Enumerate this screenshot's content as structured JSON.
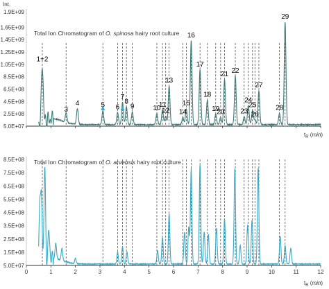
{
  "chart_data": [
    {
      "type": "line",
      "title_parts": [
        "Total Ion Chromatogram of ",
        "O. spinosa",
        " hairy root culture"
      ],
      "ylabel": "Int.",
      "xlabel_parts": [
        "t",
        "R",
        " (",
        "min",
        ")"
      ],
      "xlim": [
        0,
        12
      ],
      "xticks": [
        "0",
        "1",
        "2",
        "3",
        "4",
        "5",
        "6",
        "7",
        "8",
        "9",
        "10",
        "11",
        "12"
      ],
      "ylim": [
        50000000,
        1900000000
      ],
      "yticks": [
        "5.0E+07",
        "2.5E+08",
        "4.5E+08",
        "6.5E+08",
        "8.5E+08",
        "1.05E+09",
        "1.25E+09",
        "1.45E+09",
        "1.65E+09",
        "1.9E+09"
      ],
      "ytick_values": [
        50000000,
        250000000,
        450000000,
        650000000,
        850000000,
        1050000000,
        1250000000,
        1450000000,
        1650000000,
        1900000000
      ],
      "line_color": "#3f7a78",
      "peaks": [
        {
          "label": "1+2",
          "x": 0.65,
          "y": 1040000000
        },
        {
          "label": "3",
          "x": 1.62,
          "y": 230000000
        },
        {
          "label": "4",
          "x": 2.08,
          "y": 330000000
        },
        {
          "label": "5",
          "x": 3.12,
          "y": 300000000
        },
        {
          "label": "6",
          "x": 3.72,
          "y": 270000000
        },
        {
          "label": "7",
          "x": 3.92,
          "y": 430000000
        },
        {
          "label": "8",
          "x": 4.08,
          "y": 360000000
        },
        {
          "label": "9",
          "x": 4.32,
          "y": 280000000
        },
        {
          "label": "10",
          "x": 5.32,
          "y": 250000000
        },
        {
          "label": "11",
          "x": 5.55,
          "y": 310000000
        },
        {
          "label": "12",
          "x": 5.68,
          "y": 210000000
        },
        {
          "label": "13",
          "x": 5.82,
          "y": 700000000
        },
        {
          "label": "14",
          "x": 6.38,
          "y": 190000000
        },
        {
          "label": "15",
          "x": 6.52,
          "y": 330000000
        },
        {
          "label": "16",
          "x": 6.72,
          "y": 1430000000
        },
        {
          "label": "17",
          "x": 7.08,
          "y": 960000000
        },
        {
          "label": "18",
          "x": 7.38,
          "y": 470000000
        },
        {
          "label": "19",
          "x": 7.72,
          "y": 240000000
        },
        {
          "label": "20",
          "x": 7.92,
          "y": 190000000
        },
        {
          "label": "21",
          "x": 8.08,
          "y": 800000000
        },
        {
          "label": "22",
          "x": 8.52,
          "y": 860000000
        },
        {
          "label": "23",
          "x": 8.88,
          "y": 200000000
        },
        {
          "label": "24",
          "x": 9.05,
          "y": 380000000
        },
        {
          "label": "25",
          "x": 9.22,
          "y": 300000000
        },
        {
          "label": "26",
          "x": 9.32,
          "y": 150000000
        },
        {
          "label": "27",
          "x": 9.48,
          "y": 620000000
        },
        {
          "label": "28",
          "x": 10.32,
          "y": 260000000
        },
        {
          "label": "29",
          "x": 10.55,
          "y": 1730000000
        }
      ],
      "markers": [
        {
          "symbol": "triangle",
          "x": 3.12
        },
        {
          "symbol": "triangle",
          "x": 3.92
        }
      ],
      "dashed_guides_x": [
        0.65,
        1.62,
        3.12,
        3.72,
        3.92,
        4.08,
        4.32,
        5.32,
        5.55,
        5.68,
        5.82,
        6.38,
        6.52,
        6.72,
        7.08,
        7.38,
        7.72,
        7.92,
        8.08,
        8.52,
        8.88,
        9.05,
        9.22,
        9.32,
        9.48,
        10.32,
        10.55
      ]
    },
    {
      "type": "line",
      "title_parts": [
        "Total Ion Chromatogram of ",
        "O. arvensis",
        " hairy root culture"
      ],
      "xlabel_parts": [
        "t",
        "R",
        " (",
        "min",
        ")"
      ],
      "xlim": [
        0,
        12
      ],
      "xticks": [
        "0",
        "1",
        "2",
        "3",
        "4",
        "5",
        "6",
        "7",
        "8",
        "9",
        "10",
        "11",
        "12"
      ],
      "ylim": [
        50000000,
        850000000
      ],
      "yticks": [
        "5.0E+07",
        "1.5E+08",
        "2.5E+08",
        "3.5E+08",
        "4.5E+08",
        "5.5E+08",
        "6.5E+08",
        "7.5E+08",
        "8.5E+08"
      ],
      "ytick_values": [
        50000000,
        150000000,
        250000000,
        350000000,
        450000000,
        550000000,
        650000000,
        750000000,
        850000000
      ],
      "line_color": "#3aa9c4",
      "peaks": [
        {
          "x": 0.55,
          "y": 560000000
        },
        {
          "x": 0.62,
          "y": 500000000
        },
        {
          "x": 0.75,
          "y": 760000000
        },
        {
          "x": 0.92,
          "y": 280000000
        },
        {
          "x": 1.2,
          "y": 180000000
        },
        {
          "x": 1.45,
          "y": 150000000
        },
        {
          "x": 2.0,
          "y": 100000000
        },
        {
          "x": 3.72,
          "y": 150000000
        },
        {
          "x": 3.92,
          "y": 190000000
        },
        {
          "x": 4.1,
          "y": 150000000
        },
        {
          "x": 5.35,
          "y": 160000000
        },
        {
          "x": 5.55,
          "y": 260000000
        },
        {
          "x": 5.82,
          "y": 440000000
        },
        {
          "x": 6.45,
          "y": 300000000
        },
        {
          "x": 6.62,
          "y": 340000000
        },
        {
          "x": 6.72,
          "y": 780000000
        },
        {
          "x": 7.08,
          "y": 810000000
        },
        {
          "x": 7.25,
          "y": 300000000
        },
        {
          "x": 7.42,
          "y": 280000000
        },
        {
          "x": 7.75,
          "y": 330000000
        },
        {
          "x": 8.08,
          "y": 400000000
        },
        {
          "x": 8.5,
          "y": 780000000
        },
        {
          "x": 8.72,
          "y": 200000000
        },
        {
          "x": 9.02,
          "y": 350000000
        },
        {
          "x": 9.2,
          "y": 390000000
        },
        {
          "x": 9.45,
          "y": 790000000
        },
        {
          "x": 10.35,
          "y": 270000000
        },
        {
          "x": 10.55,
          "y": 200000000
        },
        {
          "x": 10.78,
          "y": 180000000
        }
      ],
      "dashed_guides_x": [
        0.65,
        1.62,
        3.12,
        3.72,
        3.92,
        4.08,
        4.32,
        5.32,
        5.55,
        5.68,
        5.82,
        6.38,
        6.52,
        6.72,
        7.08,
        7.38,
        7.72,
        7.92,
        8.08,
        8.52,
        8.88,
        9.05,
        9.22,
        9.32,
        9.48,
        10.32,
        10.55
      ]
    }
  ]
}
